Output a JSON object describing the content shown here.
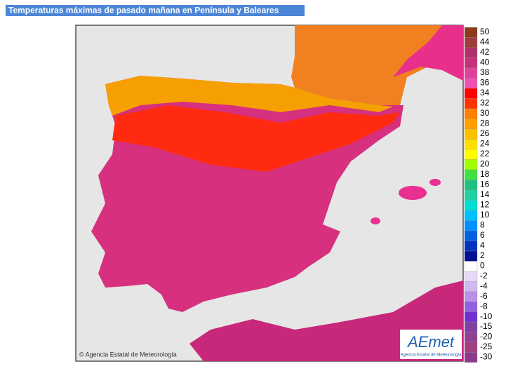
{
  "header": {
    "title": "Temperaturas máximas de pasado mañana en Península y Baleares"
  },
  "legend": {
    "entries": [
      {
        "label": "50",
        "color": "#8b3a1a"
      },
      {
        "label": "44",
        "color": "#a03c3c"
      },
      {
        "label": "42",
        "color": "#b0306a"
      },
      {
        "label": "40",
        "color": "#c8307a"
      },
      {
        "label": "38",
        "color": "#e0409a"
      },
      {
        "label": "36",
        "color": "#f050b0"
      },
      {
        "label": "34",
        "color": "#ff0000"
      },
      {
        "label": "32",
        "color": "#ff3300"
      },
      {
        "label": "30",
        "color": "#ff8000"
      },
      {
        "label": "28",
        "color": "#ffa000"
      },
      {
        "label": "26",
        "color": "#ffc000"
      },
      {
        "label": "24",
        "color": "#ffe000"
      },
      {
        "label": "22",
        "color": "#ffff00"
      },
      {
        "label": "20",
        "color": "#a0ff00"
      },
      {
        "label": "18",
        "color": "#40e040"
      },
      {
        "label": "16",
        "color": "#20c080"
      },
      {
        "label": "14",
        "color": "#20d0a0"
      },
      {
        "label": "12",
        "color": "#00e0d0"
      },
      {
        "label": "10",
        "color": "#00c0ff"
      },
      {
        "label": "8",
        "color": "#0090ff"
      },
      {
        "label": "6",
        "color": "#0060e0"
      },
      {
        "label": "4",
        "color": "#0030c0"
      },
      {
        "label": "2",
        "color": "#001090"
      },
      {
        "label": "0",
        "color": "#ffffff"
      },
      {
        "label": "-2",
        "color": "#e8d8f8"
      },
      {
        "label": "-4",
        "color": "#d0b8f0"
      },
      {
        "label": "-6",
        "color": "#b890e8"
      },
      {
        "label": "-8",
        "color": "#9060e0"
      },
      {
        "label": "-10",
        "color": "#7030d0"
      },
      {
        "label": "-15",
        "color": "#8040a0"
      },
      {
        "label": "-20",
        "color": "#904090"
      },
      {
        "label": "-25",
        "color": "#a04080"
      },
      {
        "label": "-30",
        "color": "#8b3a8b"
      }
    ]
  },
  "footer": {
    "copyright": "© Agencia Estatal de Meteorología"
  },
  "logo": {
    "name": "AEmet",
    "subtitle": "Agencia Estatal de Meteorología"
  }
}
